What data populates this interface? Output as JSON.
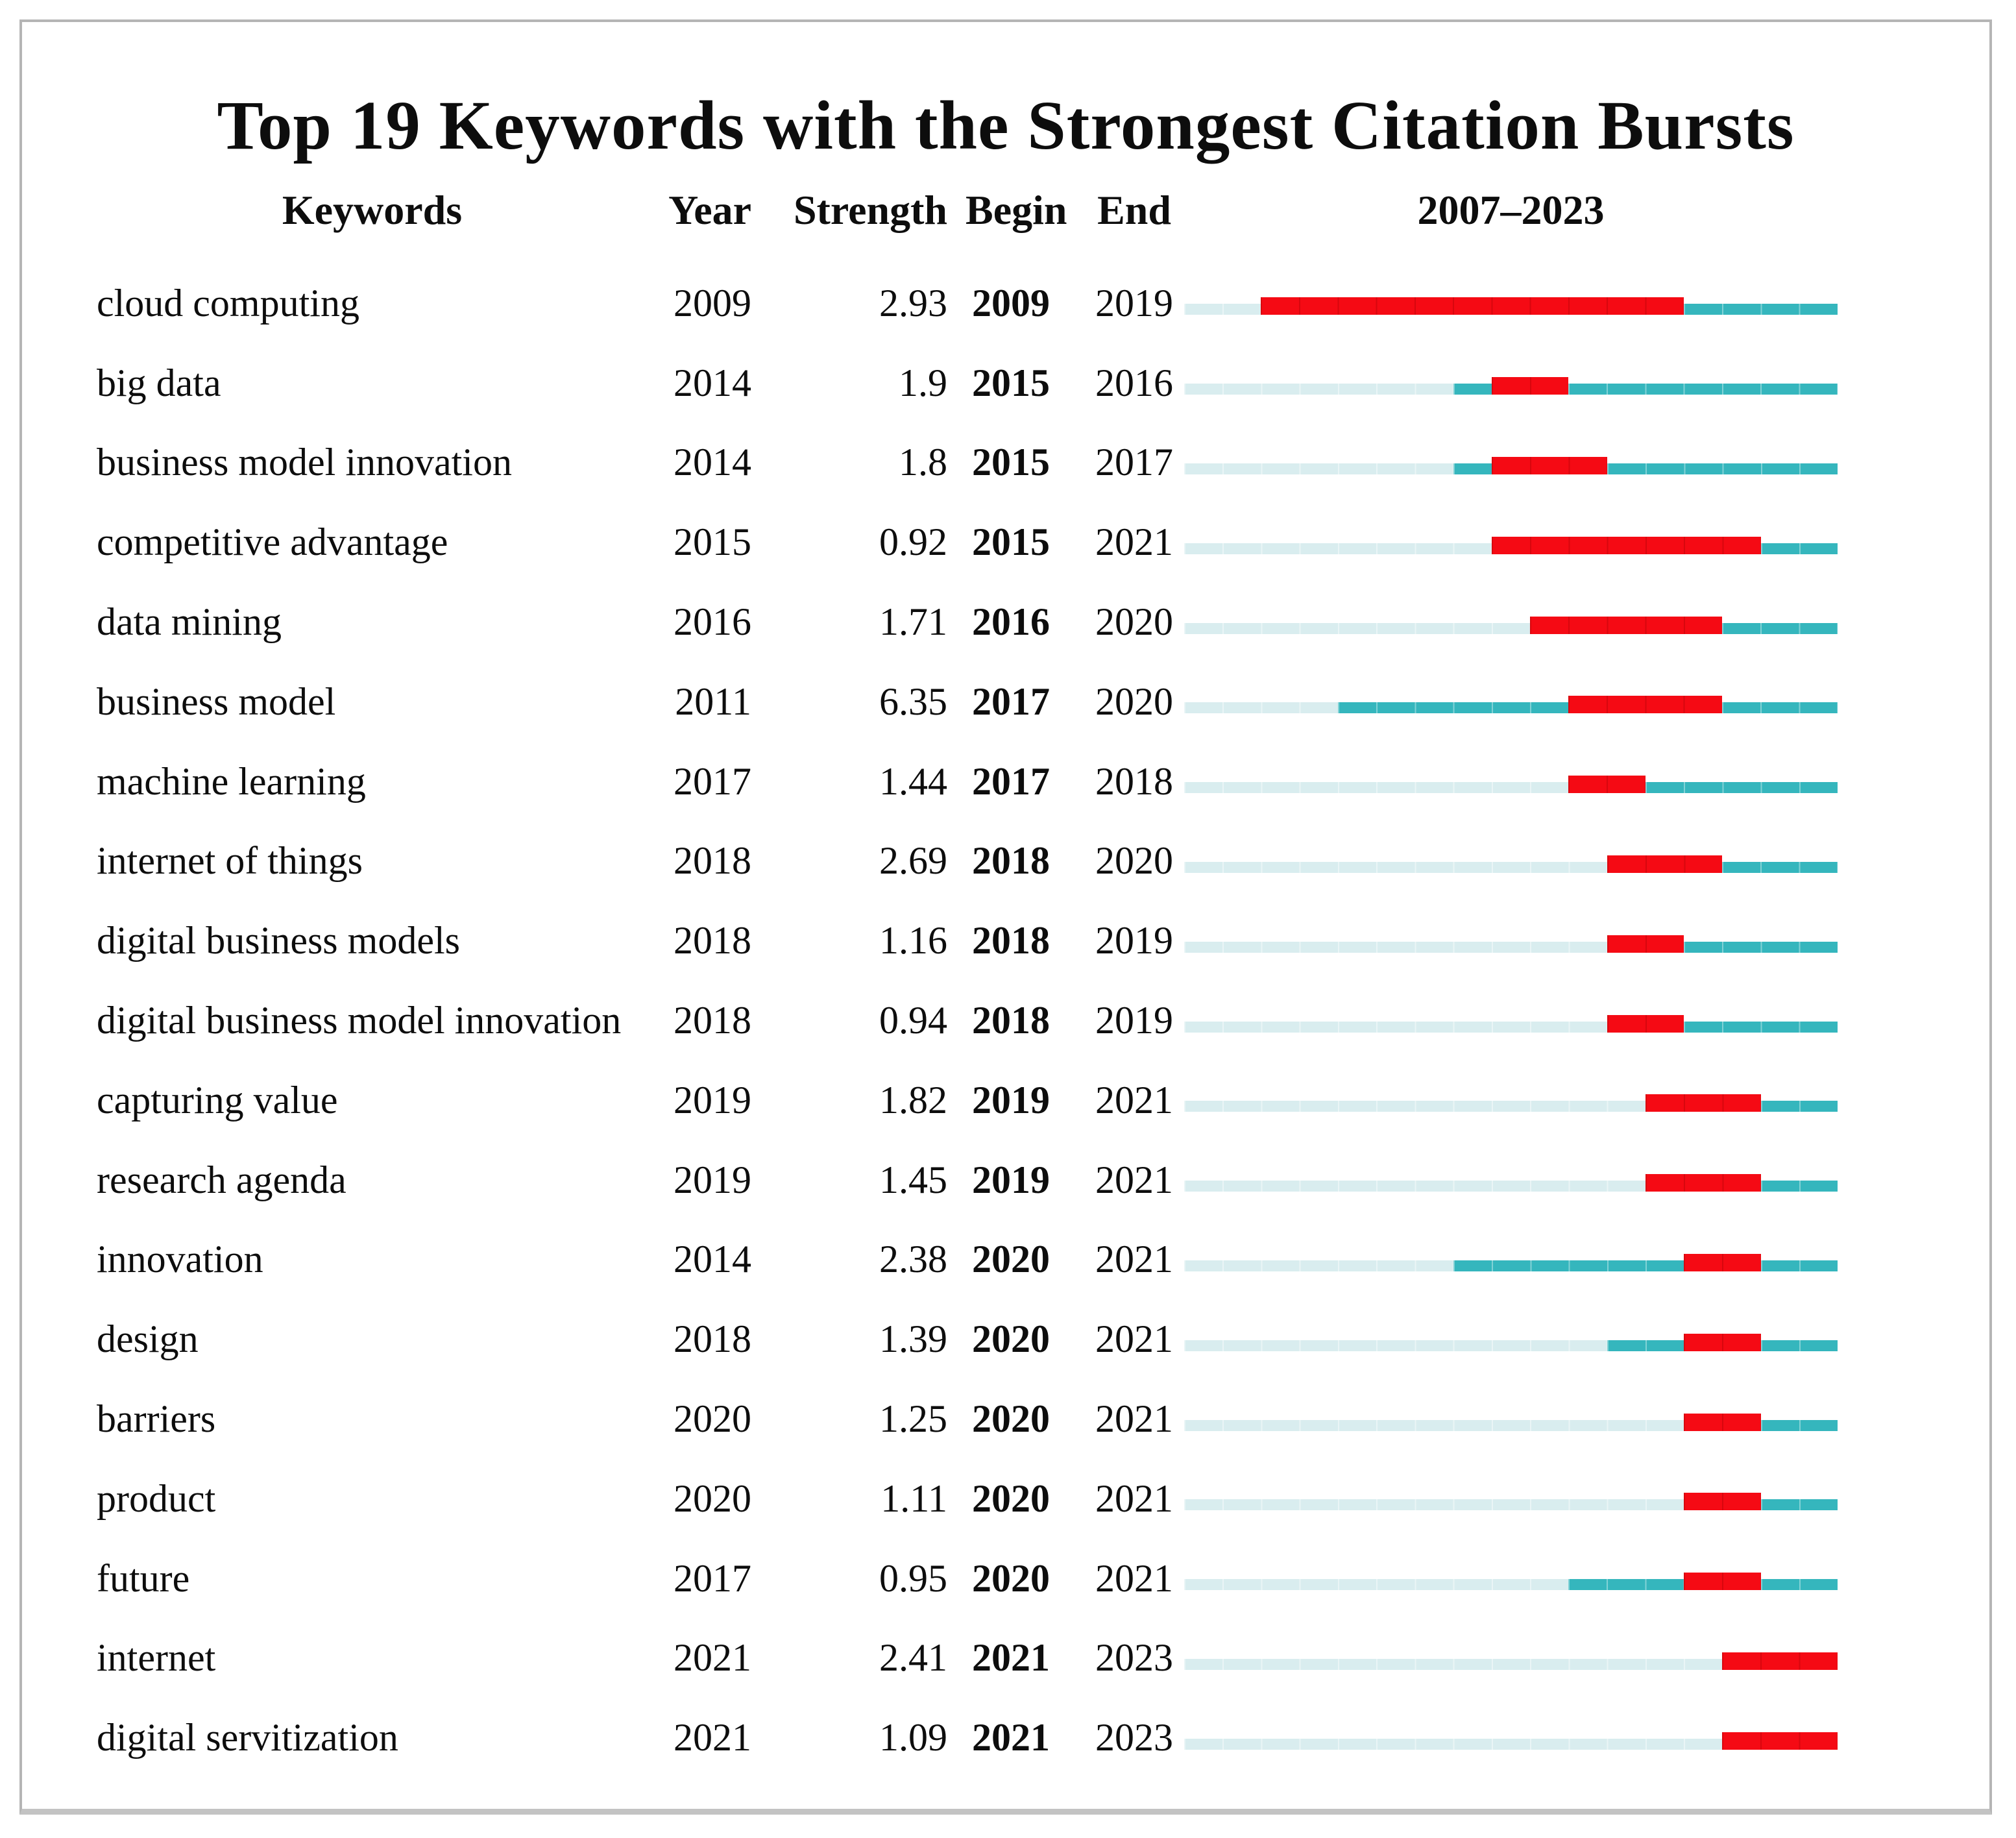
{
  "chart_data": {
    "type": "table",
    "title": "Top 19 Keywords with the Strongest Citation Bursts",
    "columns": {
      "keyword": "Keywords",
      "year": "Year",
      "strength": "Strength",
      "begin": "Begin",
      "end": "End"
    },
    "period_label": "2007–2023",
    "timeline": {
      "start_year": 2007,
      "end_year": 2023,
      "encoding": {
        "red_segment": "citation burst interval (Begin to End inclusive)",
        "teal_segment": "keyword active (from first appearance Year, non-burst)",
        "pale_segment": "before first appearance of keyword"
      }
    },
    "colors": {
      "burst": "#f50a14",
      "active": "#35b6bd",
      "inactive": "#d9edef",
      "frame_border": "#b5b5b5"
    },
    "rows": [
      {
        "keyword": "cloud computing",
        "year": 2009,
        "strength": "2.93",
        "begin": 2009,
        "end": 2019
      },
      {
        "keyword": "big data",
        "year": 2014,
        "strength": "1.9",
        "begin": 2015,
        "end": 2016
      },
      {
        "keyword": "business model innovation",
        "year": 2014,
        "strength": "1.8",
        "begin": 2015,
        "end": 2017
      },
      {
        "keyword": "competitive advantage",
        "year": 2015,
        "strength": "0.92",
        "begin": 2015,
        "end": 2021
      },
      {
        "keyword": "data mining",
        "year": 2016,
        "strength": "1.71",
        "begin": 2016,
        "end": 2020
      },
      {
        "keyword": "business model",
        "year": 2011,
        "strength": "6.35",
        "begin": 2017,
        "end": 2020
      },
      {
        "keyword": "machine learning",
        "year": 2017,
        "strength": "1.44",
        "begin": 2017,
        "end": 2018
      },
      {
        "keyword": "internet of things",
        "year": 2018,
        "strength": "2.69",
        "begin": 2018,
        "end": 2020
      },
      {
        "keyword": "digital business models",
        "year": 2018,
        "strength": "1.16",
        "begin": 2018,
        "end": 2019
      },
      {
        "keyword": "digital business model innovation",
        "year": 2018,
        "strength": "0.94",
        "begin": 2018,
        "end": 2019
      },
      {
        "keyword": "capturing value",
        "year": 2019,
        "strength": "1.82",
        "begin": 2019,
        "end": 2021
      },
      {
        "keyword": "research agenda",
        "year": 2019,
        "strength": "1.45",
        "begin": 2019,
        "end": 2021
      },
      {
        "keyword": "innovation",
        "year": 2014,
        "strength": "2.38",
        "begin": 2020,
        "end": 2021
      },
      {
        "keyword": "design",
        "year": 2018,
        "strength": "1.39",
        "begin": 2020,
        "end": 2021
      },
      {
        "keyword": "barriers",
        "year": 2020,
        "strength": "1.25",
        "begin": 2020,
        "end": 2021
      },
      {
        "keyword": "product",
        "year": 2020,
        "strength": "1.11",
        "begin": 2020,
        "end": 2021
      },
      {
        "keyword": "future",
        "year": 2017,
        "strength": "0.95",
        "begin": 2020,
        "end": 2021
      },
      {
        "keyword": "internet",
        "year": 2021,
        "strength": "2.41",
        "begin": 2021,
        "end": 2023
      },
      {
        "keyword": "digital servitization",
        "year": 2021,
        "strength": "1.09",
        "begin": 2021,
        "end": 2023
      }
    ]
  }
}
